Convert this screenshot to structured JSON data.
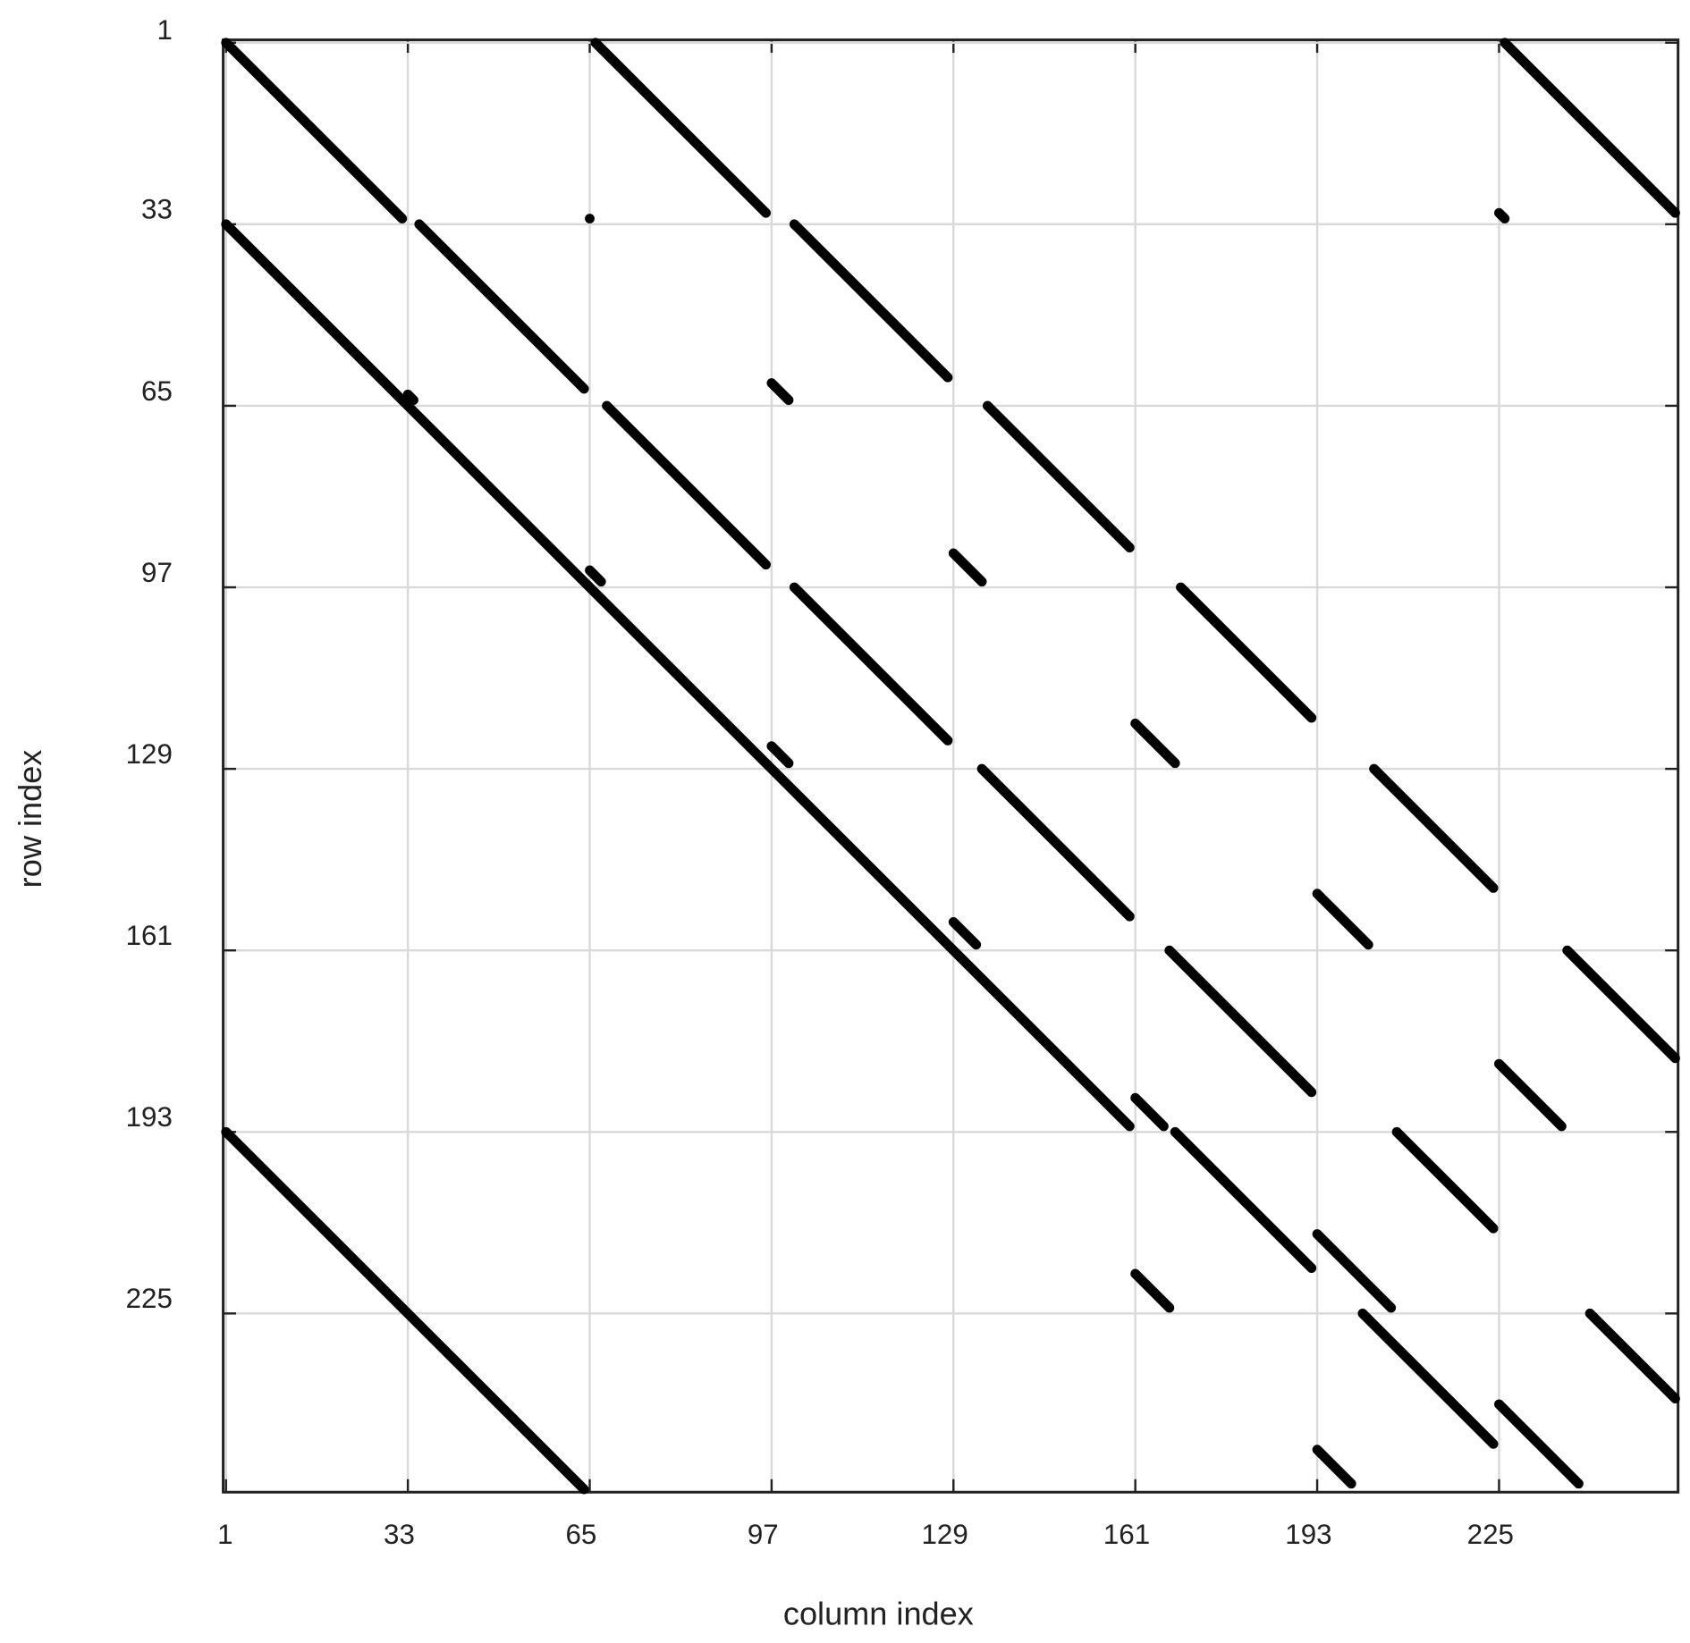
{
  "chart_data": {
    "type": "spy",
    "xlabel": "column index",
    "ylabel": "row index",
    "xlim": [
      0.5,
      256.5
    ],
    "ylim": [
      0.5,
      256.5
    ],
    "xticks": [
      1,
      33,
      65,
      97,
      129,
      161,
      193,
      225
    ],
    "yticks": [
      1,
      33,
      65,
      97,
      129,
      161,
      193,
      225
    ],
    "grid": true,
    "color": "#000000",
    "runs": [
      {
        "row_start": 1,
        "row_end": 32,
        "col_start": 1,
        "col_end": 32
      },
      {
        "row_start": 1,
        "row_end": 31,
        "col_start": 66,
        "col_end": 96
      },
      {
        "row_start": 1,
        "row_end": 31,
        "col_start": 226,
        "col_end": 256
      },
      {
        "row_start": 32,
        "row_end": 32,
        "col_start": 65,
        "col_end": 65
      },
      {
        "row_start": 31,
        "row_end": 32,
        "col_start": 225,
        "col_end": 226
      },
      {
        "row_start": 33,
        "row_end": 192,
        "col_start": 1,
        "col_end": 160
      },
      {
        "row_start": 33,
        "row_end": 62,
        "col_start": 35,
        "col_end": 64
      },
      {
        "row_start": 63,
        "row_end": 64,
        "col_start": 33,
        "col_end": 34
      },
      {
        "row_start": 33,
        "row_end": 60,
        "col_start": 101,
        "col_end": 128
      },
      {
        "row_start": 61,
        "row_end": 64,
        "col_start": 97,
        "col_end": 100
      },
      {
        "row_start": 65,
        "row_end": 93,
        "col_start": 68,
        "col_end": 96
      },
      {
        "row_start": 65,
        "row_end": 90,
        "col_start": 135,
        "col_end": 160
      },
      {
        "row_start": 94,
        "row_end": 96,
        "col_start": 65,
        "col_end": 67
      },
      {
        "row_start": 91,
        "row_end": 96,
        "col_start": 129,
        "col_end": 134
      },
      {
        "row_start": 97,
        "row_end": 124,
        "col_start": 101,
        "col_end": 128
      },
      {
        "row_start": 97,
        "row_end": 120,
        "col_start": 169,
        "col_end": 192
      },
      {
        "row_start": 125,
        "row_end": 128,
        "col_start": 97,
        "col_end": 100
      },
      {
        "row_start": 121,
        "row_end": 128,
        "col_start": 161,
        "col_end": 168
      },
      {
        "row_start": 129,
        "row_end": 155,
        "col_start": 134,
        "col_end": 160
      },
      {
        "row_start": 129,
        "row_end": 150,
        "col_start": 203,
        "col_end": 224
      },
      {
        "row_start": 156,
        "row_end": 160,
        "col_start": 129,
        "col_end": 133
      },
      {
        "row_start": 151,
        "row_end": 160,
        "col_start": 193,
        "col_end": 202
      },
      {
        "row_start": 161,
        "row_end": 186,
        "col_start": 167,
        "col_end": 192
      },
      {
        "row_start": 161,
        "row_end": 180,
        "col_start": 237,
        "col_end": 256
      },
      {
        "row_start": 181,
        "row_end": 192,
        "col_start": 225,
        "col_end": 236
      },
      {
        "row_start": 187,
        "row_end": 192,
        "col_start": 161,
        "col_end": 166
      },
      {
        "row_start": 193,
        "row_end": 256,
        "col_start": 1,
        "col_end": 64
      },
      {
        "row_start": 193,
        "row_end": 217,
        "col_start": 168,
        "col_end": 192
      },
      {
        "row_start": 193,
        "row_end": 210,
        "col_start": 207,
        "col_end": 224
      },
      {
        "row_start": 211,
        "row_end": 224,
        "col_start": 193,
        "col_end": 206
      },
      {
        "row_start": 218,
        "row_end": 224,
        "col_start": 161,
        "col_end": 167
      },
      {
        "row_start": 225,
        "row_end": 248,
        "col_start": 201,
        "col_end": 224
      },
      {
        "row_start": 225,
        "row_end": 240,
        "col_start": 241,
        "col_end": 256
      },
      {
        "row_start": 241,
        "row_end": 255,
        "col_start": 225,
        "col_end": 239
      },
      {
        "row_start": 249,
        "row_end": 255,
        "col_start": 193,
        "col_end": 199
      }
    ]
  }
}
